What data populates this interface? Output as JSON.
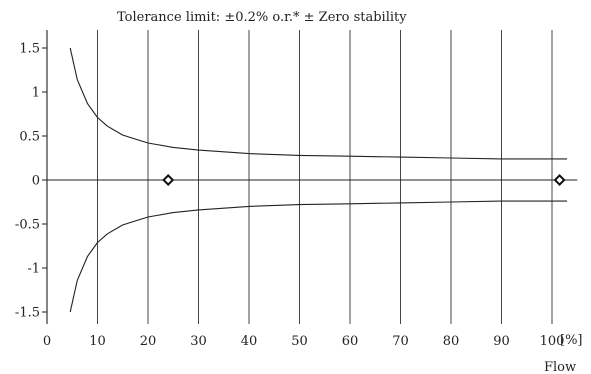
{
  "chart_data": {
    "type": "line",
    "title": "Tolerance limit: ±0.2% o.r.* ± Zero stability",
    "xlabel": "Flow",
    "x_unit_label": "[%]",
    "ylabel": "",
    "xlim": [
      0,
      105
    ],
    "ylim": [
      -1.5,
      1.5
    ],
    "x_ticks": [
      0,
      10,
      20,
      30,
      40,
      50,
      60,
      70,
      80,
      90,
      100
    ],
    "x_tick_labels": [
      "0",
      "10",
      "20",
      "30",
      "40",
      "50",
      "60",
      "70",
      "80",
      "90",
      "100"
    ],
    "y_ticks": [
      1.5,
      1,
      0.5,
      0,
      -0.5,
      -1,
      -1.5
    ],
    "y_tick_labels": [
      "1.5",
      "1",
      "0.5",
      "0",
      "-0.5",
      "-1",
      "-1.5"
    ],
    "grid": "vertical",
    "series": [
      {
        "role": "upper-limit",
        "x": [
          4.6,
          6,
          8,
          10,
          12,
          15,
          20,
          25,
          30,
          40,
          50,
          60,
          70,
          80,
          90,
          100,
          103
        ],
        "values": [
          1.5,
          1.14,
          0.87,
          0.71,
          0.61,
          0.51,
          0.42,
          0.37,
          0.34,
          0.3,
          0.28,
          0.27,
          0.26,
          0.25,
          0.24,
          0.24,
          0.24
        ]
      },
      {
        "role": "lower-limit",
        "x": [
          4.6,
          6,
          8,
          10,
          12,
          15,
          20,
          25,
          30,
          40,
          50,
          60,
          70,
          80,
          90,
          100,
          103
        ],
        "values": [
          -1.5,
          -1.14,
          -0.87,
          -0.71,
          -0.61,
          -0.51,
          -0.42,
          -0.37,
          -0.34,
          -0.3,
          -0.28,
          -0.27,
          -0.26,
          -0.25,
          -0.24,
          -0.24,
          -0.24
        ]
      }
    ],
    "markers": [
      {
        "x": 24,
        "y": 0
      },
      {
        "x": 101.5,
        "y": 0
      }
    ]
  }
}
